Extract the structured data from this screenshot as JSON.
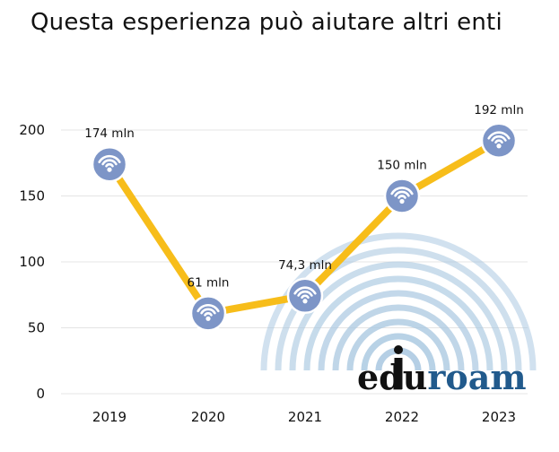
{
  "title": "Questa esperienza può aiutare altri enti",
  "colors": {
    "line": "#f7bd1a",
    "marker_fill": "#7d95c7",
    "marker_stroke": "#ffffff",
    "grid": "#e4e4e4",
    "logo_dark": "#111111",
    "logo_blue": "#215a8c",
    "logo_arcs": "#a8c7e0"
  },
  "logo": {
    "text_dark": "edu",
    "text_blue": "roam",
    "icon": "eduroam-logo"
  },
  "chart_data": {
    "type": "line",
    "title": "Questa esperienza può aiutare altri enti",
    "xlabel": "",
    "ylabel": "",
    "categories": [
      "2019",
      "2020",
      "2021",
      "2022",
      "2023"
    ],
    "yticks": [
      "0",
      "50",
      "100",
      "150",
      "200"
    ],
    "ylim": [
      0,
      200
    ],
    "grid": true,
    "legend": "none",
    "marker_icon": "wifi-icon",
    "series": [
      {
        "values": [
          174,
          61,
          74.3,
          150,
          192
        ],
        "labels": [
          "174 mln",
          "61 mln",
          "74,3 mln",
          "150 mln",
          "192 mln"
        ]
      }
    ]
  }
}
